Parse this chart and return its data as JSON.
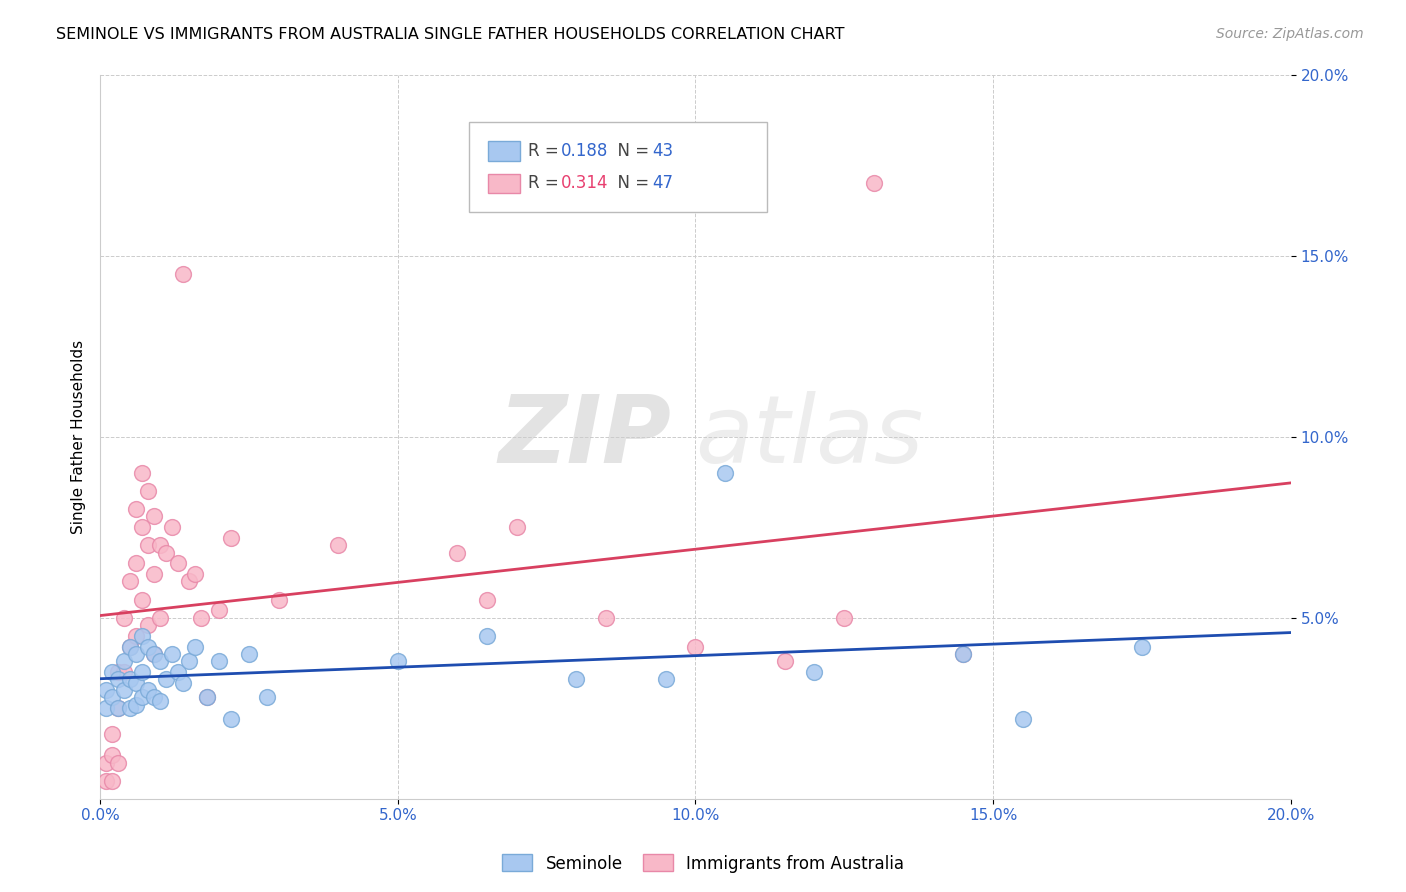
{
  "title": "SEMINOLE VS IMMIGRANTS FROM AUSTRALIA SINGLE FATHER HOUSEHOLDS CORRELATION CHART",
  "source": "Source: ZipAtlas.com",
  "ylabel": "Single Father Households",
  "xlim": [
    0.0,
    0.2
  ],
  "ylim": [
    0.0,
    0.2
  ],
  "xticks": [
    0.0,
    0.05,
    0.1,
    0.15,
    0.2
  ],
  "yticks": [
    0.05,
    0.1,
    0.15,
    0.2
  ],
  "seminole_color": "#A8C8F0",
  "australia_color": "#F8B8C8",
  "seminole_edge": "#7AAAD8",
  "australia_edge": "#E888A8",
  "trend_seminole_color": "#1E4DB0",
  "trend_australia_color": "#D84060",
  "tick_color": "#3366CC",
  "legend_R_color_sem": "#3366CC",
  "legend_N_color_sem": "#3366CC",
  "legend_R_color_aus": "#E84070",
  "legend_N_color_aus": "#3366CC",
  "legend_R_seminole": "0.188",
  "legend_N_seminole": "43",
  "legend_R_australia": "0.314",
  "legend_N_australia": "47",
  "watermark_zip": "ZIP",
  "watermark_atlas": "atlas",
  "seminole_x": [
    0.001,
    0.001,
    0.002,
    0.002,
    0.003,
    0.003,
    0.004,
    0.004,
    0.005,
    0.005,
    0.005,
    0.006,
    0.006,
    0.006,
    0.007,
    0.007,
    0.007,
    0.008,
    0.008,
    0.009,
    0.009,
    0.01,
    0.01,
    0.011,
    0.012,
    0.013,
    0.014,
    0.015,
    0.016,
    0.018,
    0.02,
    0.022,
    0.025,
    0.028,
    0.05,
    0.065,
    0.08,
    0.095,
    0.105,
    0.12,
    0.145,
    0.155,
    0.175
  ],
  "seminole_y": [
    0.03,
    0.025,
    0.035,
    0.028,
    0.033,
    0.025,
    0.038,
    0.03,
    0.042,
    0.033,
    0.025,
    0.04,
    0.032,
    0.026,
    0.045,
    0.035,
    0.028,
    0.042,
    0.03,
    0.04,
    0.028,
    0.038,
    0.027,
    0.033,
    0.04,
    0.035,
    0.032,
    0.038,
    0.042,
    0.028,
    0.038,
    0.022,
    0.04,
    0.028,
    0.038,
    0.045,
    0.033,
    0.033,
    0.09,
    0.035,
    0.04,
    0.022,
    0.042
  ],
  "australia_x": [
    0.001,
    0.001,
    0.002,
    0.002,
    0.002,
    0.003,
    0.003,
    0.003,
    0.004,
    0.004,
    0.005,
    0.005,
    0.006,
    0.006,
    0.006,
    0.007,
    0.007,
    0.007,
    0.008,
    0.008,
    0.008,
    0.009,
    0.009,
    0.009,
    0.01,
    0.01,
    0.011,
    0.012,
    0.013,
    0.014,
    0.015,
    0.016,
    0.017,
    0.018,
    0.02,
    0.022,
    0.03,
    0.04,
    0.06,
    0.065,
    0.07,
    0.085,
    0.1,
    0.115,
    0.125,
    0.13,
    0.145
  ],
  "australia_y": [
    0.01,
    0.005,
    0.018,
    0.012,
    0.005,
    0.035,
    0.025,
    0.01,
    0.05,
    0.035,
    0.06,
    0.042,
    0.08,
    0.065,
    0.045,
    0.09,
    0.075,
    0.055,
    0.085,
    0.07,
    0.048,
    0.078,
    0.062,
    0.04,
    0.07,
    0.05,
    0.068,
    0.075,
    0.065,
    0.145,
    0.06,
    0.062,
    0.05,
    0.028,
    0.052,
    0.072,
    0.055,
    0.07,
    0.068,
    0.055,
    0.075,
    0.05,
    0.042,
    0.038,
    0.05,
    0.17,
    0.04
  ]
}
